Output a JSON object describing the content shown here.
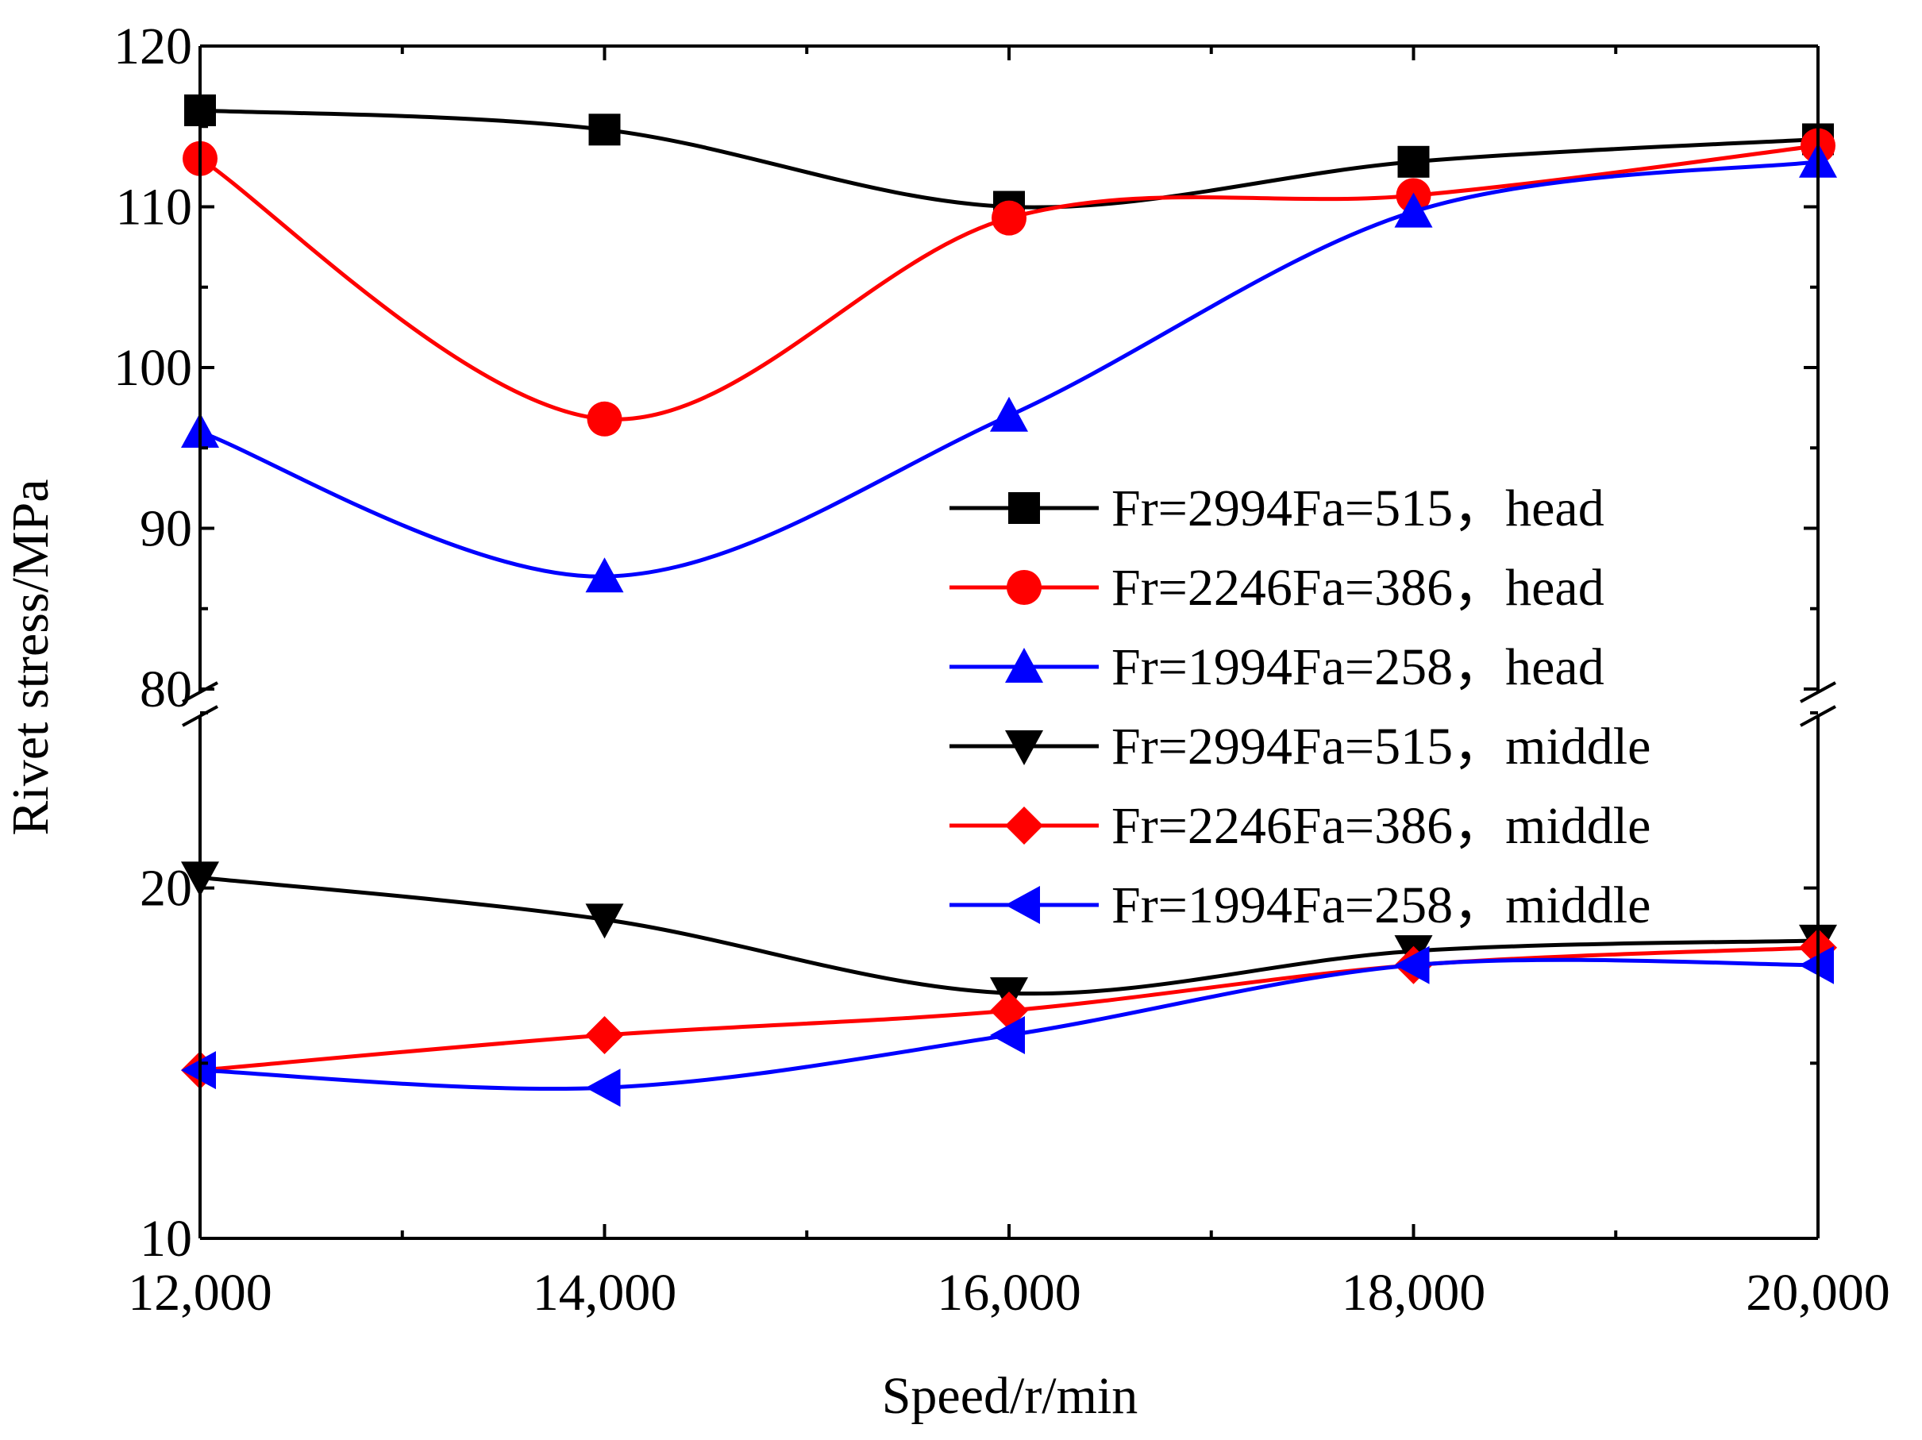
{
  "chart_data": {
    "type": "line",
    "title": "",
    "xlabel": "Speed/r/min",
    "ylabel": "Rivet stress/MPa",
    "x": [
      12000,
      14000,
      16000,
      18000,
      20000
    ],
    "x_tick_labels": [
      "12,000",
      "14,000",
      "16,000",
      "18,000",
      "20,000"
    ],
    "xlim": [
      12000,
      20000
    ],
    "y_axis_break": {
      "lower_segment": [
        10,
        25
      ],
      "upper_segment": [
        80,
        120
      ],
      "break_between": [
        25,
        80
      ]
    },
    "y_tick_labels": [
      "10",
      "20",
      "80",
      "90",
      "100",
      "110",
      "120"
    ],
    "grid": false,
    "legend_position": "right-center",
    "series": [
      {
        "name": "Fr=2994Fa=515，head",
        "color": "#000000",
        "marker": "square",
        "values": [
          116.0,
          114.8,
          110.0,
          112.8,
          114.2
        ]
      },
      {
        "name": "Fr=2246Fa=386，head",
        "color": "#ff0000",
        "marker": "circle",
        "values": [
          113.0,
          96.8,
          109.3,
          110.7,
          113.8
        ]
      },
      {
        "name": "Fr=1994Fa=258，head",
        "color": "#0000ff",
        "marker": "triangle-up",
        "values": [
          96.0,
          87.0,
          97.0,
          109.7,
          112.8
        ]
      },
      {
        "name": "Fr=2994Fa=515，middle",
        "color": "#000000",
        "marker": "triangle-down",
        "values": [
          20.3,
          19.1,
          17.0,
          18.2,
          18.5
        ]
      },
      {
        "name": "Fr=2246Fa=386，middle",
        "color": "#ff0000",
        "marker": "diamond",
        "values": [
          14.8,
          15.8,
          16.5,
          17.8,
          18.3
        ]
      },
      {
        "name": "Fr=1994Fa=258，middle",
        "color": "#0000ff",
        "marker": "triangle-left",
        "values": [
          14.8,
          14.3,
          15.8,
          17.8,
          17.8
        ]
      }
    ]
  }
}
